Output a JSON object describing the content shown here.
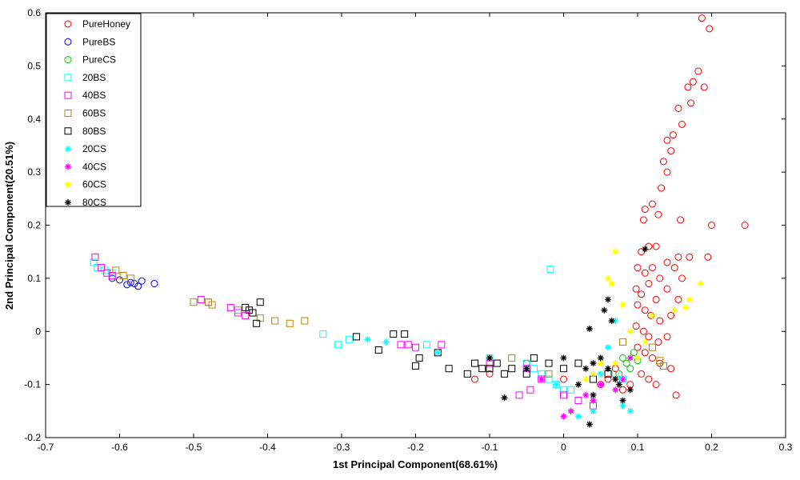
{
  "chart_data": {
    "type": "scatter",
    "xlabel": "1st Principal Component(68.61%)",
    "ylabel": "2nd Principal Component(20.51%)",
    "xlim": [
      -0.7,
      0.3
    ],
    "ylim": [
      -0.2,
      0.6
    ],
    "xticks": [
      "-0.7",
      "-0.6",
      "-0.5",
      "-0.4",
      "-0.3",
      "-0.2",
      "-0.1",
      "0",
      "0.1",
      "0.2",
      "0.3"
    ],
    "yticks": [
      "-0.2",
      "-0.1",
      "0",
      "0.1",
      "0.2",
      "0.3",
      "0.4",
      "0.5",
      "0.6"
    ],
    "grid": false,
    "legend_position": "top-left",
    "series": [
      {
        "name": "PureHoney",
        "marker": "circle",
        "color": "#ff0000",
        "points": [
          [
            0.187,
            0.59
          ],
          [
            0.197,
            0.57
          ],
          [
            0.182,
            0.49
          ],
          [
            0.175,
            0.47
          ],
          [
            0.168,
            0.46
          ],
          [
            0.19,
            0.46
          ],
          [
            0.172,
            0.43
          ],
          [
            0.155,
            0.42
          ],
          [
            0.16,
            0.39
          ],
          [
            0.14,
            0.36
          ],
          [
            0.148,
            0.37
          ],
          [
            0.145,
            0.34
          ],
          [
            0.135,
            0.32
          ],
          [
            0.14,
            0.3
          ],
          [
            0.132,
            0.27
          ],
          [
            0.128,
            0.22
          ],
          [
            0.12,
            0.24
          ],
          [
            0.11,
            0.23
          ],
          [
            0.108,
            0.21
          ],
          [
            0.158,
            0.21
          ],
          [
            0.2,
            0.2
          ],
          [
            0.245,
            0.2
          ],
          [
            0.105,
            0.15
          ],
          [
            0.115,
            0.16
          ],
          [
            0.125,
            0.16
          ],
          [
            0.14,
            0.13
          ],
          [
            0.155,
            0.14
          ],
          [
            0.17,
            0.14
          ],
          [
            0.195,
            0.14
          ],
          [
            0.1,
            0.12
          ],
          [
            0.11,
            0.11
          ],
          [
            0.12,
            0.12
          ],
          [
            0.13,
            0.1
          ],
          [
            0.15,
            0.12
          ],
          [
            0.16,
            0.1
          ],
          [
            0.098,
            0.08
          ],
          [
            0.105,
            0.07
          ],
          [
            0.115,
            0.09
          ],
          [
            0.125,
            0.06
          ],
          [
            0.14,
            0.08
          ],
          [
            0.155,
            0.06
          ],
          [
            0.1,
            0.05
          ],
          [
            0.11,
            0.04
          ],
          [
            0.118,
            0.03
          ],
          [
            0.13,
            0.02
          ],
          [
            0.145,
            0.03
          ],
          [
            0.098,
            0.01
          ],
          [
            0.108,
            0.0
          ],
          [
            0.115,
            -0.01
          ],
          [
            0.128,
            -0.02
          ],
          [
            0.14,
            -0.01
          ],
          [
            0.1,
            -0.03
          ],
          [
            0.11,
            -0.04
          ],
          [
            0.12,
            -0.05
          ],
          [
            0.13,
            -0.06
          ],
          [
            0.145,
            -0.07
          ],
          [
            0.105,
            -0.08
          ],
          [
            0.115,
            -0.09
          ],
          [
            0.125,
            -0.1
          ],
          [
            0.152,
            -0.12
          ],
          [
            0.09,
            -0.1
          ],
          [
            0.08,
            -0.11
          ],
          [
            0.07,
            -0.07
          ],
          [
            0.06,
            -0.09
          ],
          [
            0.05,
            -0.1
          ],
          [
            -0.05,
            -0.06
          ],
          [
            -0.1,
            -0.08
          ],
          [
            -0.12,
            -0.09
          ],
          [
            0.0,
            -0.09
          ]
        ]
      },
      {
        "name": "PureBS",
        "marker": "circle",
        "color": "#0000ff",
        "points": [
          [
            -0.553,
            0.09
          ],
          [
            -0.57,
            0.095
          ],
          [
            -0.58,
            0.09
          ],
          [
            -0.59,
            0.088
          ],
          [
            -0.6,
            0.097
          ],
          [
            -0.61,
            0.1
          ],
          [
            -0.575,
            0.085
          ],
          [
            -0.585,
            0.092
          ]
        ]
      },
      {
        "name": "PureCS",
        "marker": "circle",
        "color": "#00cc00",
        "points": [
          [
            0.08,
            -0.05
          ],
          [
            0.085,
            -0.06
          ],
          [
            0.09,
            -0.07
          ],
          [
            0.095,
            -0.04
          ],
          [
            0.1,
            -0.055
          ],
          [
            0.075,
            -0.08
          ]
        ]
      },
      {
        "name": "20BS",
        "marker": "square",
        "color": "#00ffff",
        "points": [
          [
            -0.635,
            0.13
          ],
          [
            -0.63,
            0.12
          ],
          [
            -0.62,
            0.115
          ],
          [
            -0.61,
            0.11
          ],
          [
            -0.325,
            -0.005
          ],
          [
            -0.305,
            -0.025
          ],
          [
            -0.29,
            -0.015
          ],
          [
            -0.28,
            -0.01
          ],
          [
            -0.185,
            -0.025
          ],
          [
            -0.1,
            -0.05
          ],
          [
            -0.05,
            -0.06
          ],
          [
            -0.04,
            -0.07
          ],
          [
            -0.03,
            -0.08
          ],
          [
            -0.02,
            -0.09
          ],
          [
            -0.01,
            -0.1
          ],
          [
            0.0,
            -0.11
          ],
          [
            0.01,
            -0.11
          ],
          [
            -0.018,
            0.117
          ],
          [
            0.07,
            -0.08
          ],
          [
            0.08,
            -0.09
          ]
        ]
      },
      {
        "name": "40BS",
        "marker": "square",
        "color": "#ff00ff",
        "points": [
          [
            -0.633,
            0.14
          ],
          [
            -0.625,
            0.12
          ],
          [
            -0.617,
            0.11
          ],
          [
            -0.61,
            0.105
          ],
          [
            -0.49,
            0.06
          ],
          [
            -0.48,
            0.055
          ],
          [
            -0.45,
            0.045
          ],
          [
            -0.44,
            0.035
          ],
          [
            -0.43,
            0.03
          ],
          [
            -0.22,
            -0.025
          ],
          [
            -0.21,
            -0.025
          ],
          [
            -0.2,
            -0.03
          ],
          [
            -0.165,
            -0.025
          ],
          [
            -0.1,
            -0.06
          ],
          [
            -0.05,
            -0.07
          ],
          [
            -0.06,
            -0.12
          ],
          [
            -0.045,
            -0.11
          ],
          [
            -0.03,
            -0.09
          ],
          [
            0.0,
            -0.12
          ],
          [
            0.02,
            -0.13
          ],
          [
            0.04,
            -0.14
          ]
        ]
      },
      {
        "name": "60BS",
        "marker": "square",
        "color": "#b8860b",
        "points": [
          [
            -0.605,
            0.115
          ],
          [
            -0.595,
            0.105
          ],
          [
            -0.585,
            0.1
          ],
          [
            -0.5,
            0.055
          ],
          [
            -0.48,
            0.055
          ],
          [
            -0.475,
            0.05
          ],
          [
            -0.44,
            0.04
          ],
          [
            -0.42,
            0.035
          ],
          [
            -0.41,
            0.025
          ],
          [
            -0.39,
            0.02
          ],
          [
            -0.37,
            0.015
          ],
          [
            -0.35,
            0.02
          ],
          [
            -0.07,
            -0.05
          ],
          [
            -0.02,
            -0.08
          ],
          [
            0.08,
            -0.02
          ],
          [
            0.12,
            -0.03
          ],
          [
            0.13,
            -0.055
          ],
          [
            0.135,
            -0.065
          ]
        ]
      },
      {
        "name": "80BS",
        "marker": "square",
        "color": "#000000",
        "points": [
          [
            -0.43,
            0.045
          ],
          [
            -0.425,
            0.04
          ],
          [
            -0.42,
            0.035
          ],
          [
            -0.41,
            0.055
          ],
          [
            -0.415,
            0.015
          ],
          [
            -0.28,
            -0.01
          ],
          [
            -0.25,
            -0.035
          ],
          [
            -0.23,
            -0.005
          ],
          [
            -0.215,
            -0.005
          ],
          [
            -0.2,
            -0.065
          ],
          [
            -0.195,
            -0.05
          ],
          [
            -0.17,
            -0.04
          ],
          [
            -0.155,
            -0.07
          ],
          [
            -0.13,
            -0.08
          ],
          [
            -0.12,
            -0.06
          ],
          [
            -0.11,
            -0.07
          ],
          [
            -0.1,
            -0.07
          ],
          [
            -0.09,
            -0.06
          ],
          [
            -0.08,
            -0.08
          ],
          [
            -0.07,
            -0.07
          ],
          [
            -0.05,
            -0.08
          ],
          [
            -0.04,
            -0.05
          ],
          [
            -0.02,
            -0.06
          ],
          [
            0.0,
            -0.07
          ],
          [
            0.02,
            -0.06
          ],
          [
            0.04,
            -0.09
          ],
          [
            0.06,
            -0.08
          ]
        ]
      },
      {
        "name": "20CS",
        "marker": "star",
        "color": "#00ffff",
        "points": [
          [
            -0.265,
            -0.015
          ],
          [
            -0.24,
            -0.02
          ],
          [
            -0.17,
            -0.04
          ],
          [
            -0.05,
            -0.07
          ],
          [
            -0.01,
            -0.1
          ],
          [
            0.02,
            -0.16
          ],
          [
            0.04,
            -0.15
          ],
          [
            0.05,
            -0.08
          ],
          [
            0.06,
            -0.03
          ],
          [
            0.07,
            0.02
          ],
          [
            0.08,
            -0.14
          ],
          [
            0.09,
            -0.15
          ]
        ]
      },
      {
        "name": "40CS",
        "marker": "star",
        "color": "#ff00ff",
        "points": [
          [
            0.0,
            -0.16
          ],
          [
            0.01,
            -0.15
          ],
          [
            0.03,
            -0.12
          ],
          [
            0.04,
            -0.13
          ],
          [
            0.05,
            -0.1
          ],
          [
            0.07,
            -0.11
          ],
          [
            0.08,
            -0.09
          ],
          [
            0.09,
            -0.05
          ],
          [
            -0.03,
            -0.09
          ]
        ]
      },
      {
        "name": "60CS",
        "marker": "star",
        "color": "#ffff00",
        "points": [
          [
            0.07,
            0.15
          ],
          [
            0.06,
            0.1
          ],
          [
            0.065,
            0.09
          ],
          [
            0.08,
            0.05
          ],
          [
            0.09,
            0.0
          ],
          [
            0.1,
            -0.05
          ],
          [
            0.11,
            -0.02
          ],
          [
            0.12,
            0.03
          ],
          [
            0.15,
            0.04
          ],
          [
            0.17,
            0.06
          ],
          [
            0.185,
            0.09
          ],
          [
            0.165,
            0.045
          ],
          [
            0.05,
            -0.06
          ],
          [
            0.04,
            -0.08
          ],
          [
            0.03,
            -0.09
          ],
          [
            0.02,
            -0.1
          ],
          [
            0.07,
            -0.06
          ]
        ]
      },
      {
        "name": "80CS",
        "marker": "star",
        "color": "#000000",
        "points": [
          [
            0.11,
            0.155
          ],
          [
            0.06,
            0.06
          ],
          [
            0.055,
            0.04
          ],
          [
            0.065,
            0.02
          ],
          [
            0.035,
            0.005
          ],
          [
            0.03,
            -0.07
          ],
          [
            0.04,
            -0.06
          ],
          [
            0.05,
            -0.05
          ],
          [
            0.06,
            -0.07
          ],
          [
            0.07,
            -0.09
          ],
          [
            0.075,
            -0.1
          ],
          [
            0.035,
            -0.175
          ],
          [
            0.04,
            -0.12
          ],
          [
            0.02,
            -0.1
          ],
          [
            0.0,
            -0.05
          ],
          [
            -0.08,
            -0.125
          ],
          [
            -0.05,
            -0.07
          ],
          [
            -0.1,
            -0.05
          ],
          [
            0.08,
            -0.13
          ],
          [
            0.09,
            -0.11
          ]
        ]
      }
    ]
  }
}
